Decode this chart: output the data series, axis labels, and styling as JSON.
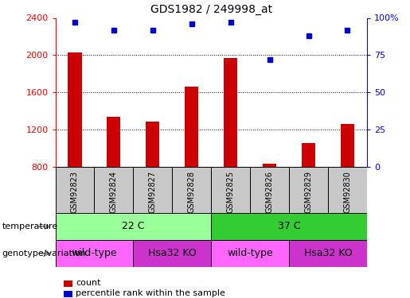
{
  "title": "GDS1982 / 249998_at",
  "samples": [
    "GSM92823",
    "GSM92824",
    "GSM92827",
    "GSM92828",
    "GSM92825",
    "GSM92826",
    "GSM92829",
    "GSM92830"
  ],
  "counts": [
    2030,
    1340,
    1290,
    1660,
    1970,
    830,
    1060,
    1260
  ],
  "percentiles": [
    97,
    92,
    92,
    96,
    97,
    72,
    88,
    92
  ],
  "ylim_left": [
    800,
    2400
  ],
  "ylim_right": [
    0,
    100
  ],
  "yticks_left": [
    800,
    1200,
    1600,
    2000,
    2400
  ],
  "yticks_right": [
    0,
    25,
    50,
    75,
    100
  ],
  "ytick_right_labels": [
    "0",
    "25",
    "50",
    "75",
    "100%"
  ],
  "bar_color": "#cc0000",
  "dot_color": "#0000cc",
  "sample_bg_color": "#c8c8c8",
  "temperature_groups": [
    {
      "label": "22 C",
      "start": 0,
      "end": 3,
      "color": "#99ff99"
    },
    {
      "label": "37 C",
      "start": 4,
      "end": 7,
      "color": "#33cc33"
    }
  ],
  "genotype_groups": [
    {
      "label": "wild-type",
      "start": 0,
      "end": 1,
      "color": "#ff66ff"
    },
    {
      "label": "Hsa32 KO",
      "start": 2,
      "end": 3,
      "color": "#cc33cc"
    },
    {
      "label": "wild-type",
      "start": 4,
      "end": 5,
      "color": "#ff66ff"
    },
    {
      "label": "Hsa32 KO",
      "start": 6,
      "end": 7,
      "color": "#cc33cc"
    }
  ],
  "row_labels": [
    "temperature",
    "genotype/variation"
  ],
  "legend_items": [
    {
      "color": "#cc0000",
      "label": "count"
    },
    {
      "color": "#0000cc",
      "label": "percentile rank within the sample"
    }
  ],
  "gridlines_at": [
    2000,
    1600,
    1200
  ],
  "bar_width": 0.35
}
